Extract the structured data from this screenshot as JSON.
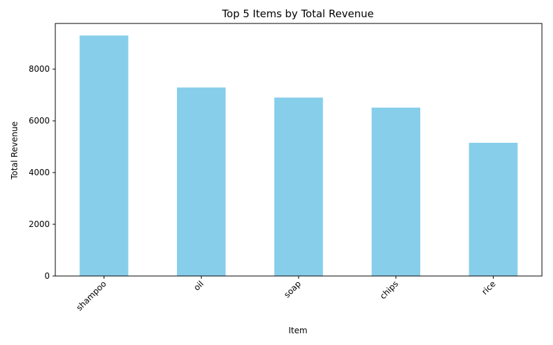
{
  "chart_data": {
    "type": "bar",
    "title": "Top 5 Items by Total Revenue",
    "xlabel": "Item",
    "ylabel": "Total Revenue",
    "categories": [
      "shampoo",
      "oil",
      "soap",
      "chips",
      "rice"
    ],
    "values": [
      9300,
      7290,
      6900,
      6510,
      5150
    ],
    "yticks": [
      0,
      2000,
      4000,
      6000,
      8000
    ],
    "ylim": [
      0,
      9765
    ],
    "bar_color": "#87CEEB",
    "grid": false,
    "legend": "none",
    "xtick_rotation": 45
  }
}
